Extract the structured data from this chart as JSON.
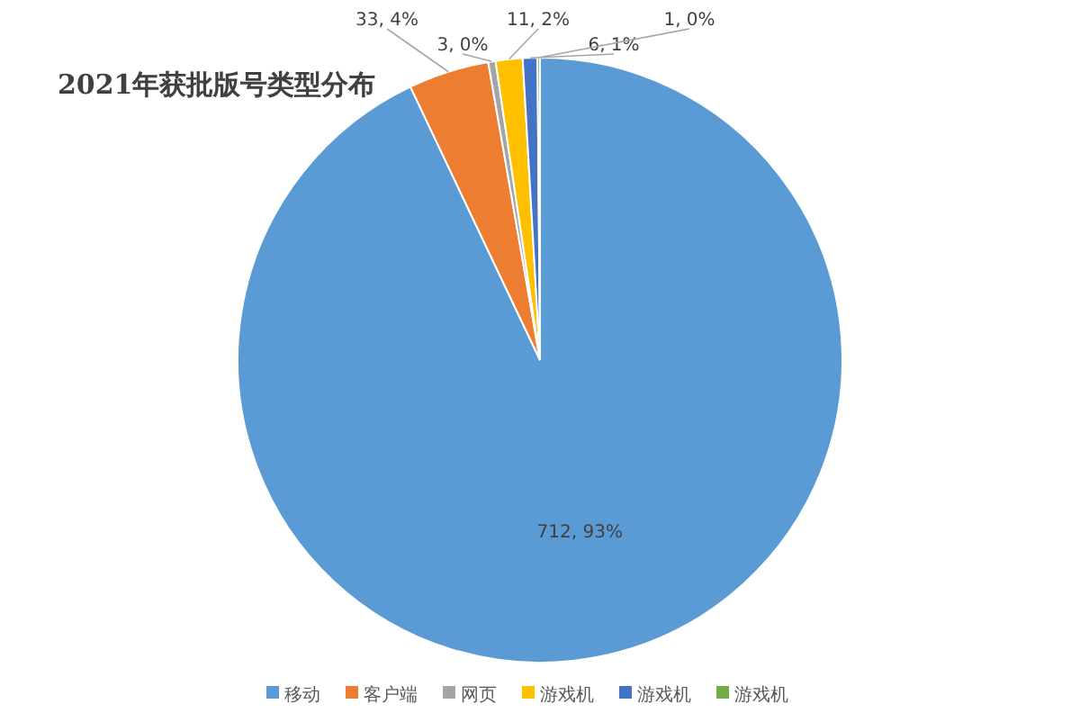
{
  "chart_data": {
    "type": "pie",
    "title": "2021年获批版号类型分布",
    "categories": [
      "移动",
      "客户端",
      "网页",
      "游戏机",
      "游戏机",
      "游戏机"
    ],
    "values": [
      712,
      33,
      3,
      11,
      6,
      1
    ],
    "colors": [
      "#5b9bd5",
      "#ed7d31",
      "#a5a5a5",
      "#ffc000",
      "#4472c4",
      "#70ad47"
    ],
    "value_labels": [
      "712, 93%",
      "33, 4%",
      "3, 0%",
      "11, 2%",
      "6, 1%",
      "1, 0%"
    ],
    "legend": "bottom"
  }
}
